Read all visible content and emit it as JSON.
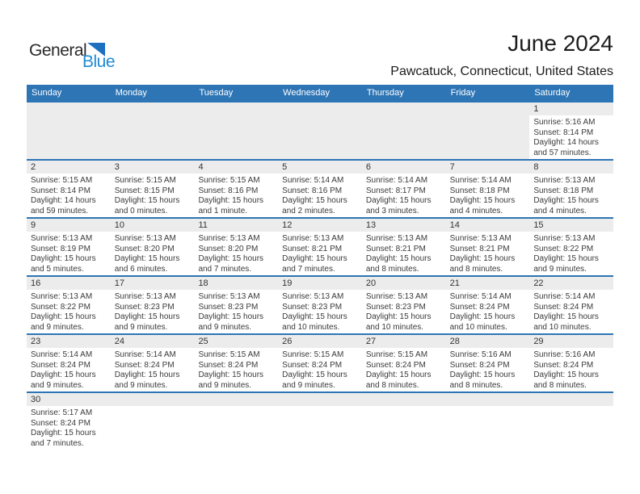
{
  "colors": {
    "header-blue": "#2e75b5",
    "band-gray": "#ececec",
    "logo-blue": "#1e8bd1",
    "flag-blue": "#1c70bf"
  },
  "logo": {
    "part1": "General",
    "part2": "Blue"
  },
  "header": {
    "title": "June 2024",
    "subtitle": "Pawcatuck, Connecticut, United States"
  },
  "calendar": {
    "weekdays": [
      "Sunday",
      "Monday",
      "Tuesday",
      "Wednesday",
      "Thursday",
      "Friday",
      "Saturday"
    ],
    "weeks": [
      [
        {
          "empty": "full"
        },
        {
          "empty": "full"
        },
        {
          "empty": "full"
        },
        {
          "empty": "full"
        },
        {
          "empty": "full"
        },
        {
          "empty": "full"
        },
        {
          "day": "1",
          "lines": [
            "Sunrise: 5:16 AM",
            "Sunset: 8:14 PM",
            "Daylight: 14 hours",
            "and 57 minutes."
          ]
        }
      ],
      [
        {
          "day": "2",
          "lines": [
            "Sunrise: 5:15 AM",
            "Sunset: 8:14 PM",
            "Daylight: 14 hours",
            "and 59 minutes."
          ]
        },
        {
          "day": "3",
          "lines": [
            "Sunrise: 5:15 AM",
            "Sunset: 8:15 PM",
            "Daylight: 15 hours",
            "and 0 minutes."
          ]
        },
        {
          "day": "4",
          "lines": [
            "Sunrise: 5:15 AM",
            "Sunset: 8:16 PM",
            "Daylight: 15 hours",
            "and 1 minute."
          ]
        },
        {
          "day": "5",
          "lines": [
            "Sunrise: 5:14 AM",
            "Sunset: 8:16 PM",
            "Daylight: 15 hours",
            "and 2 minutes."
          ]
        },
        {
          "day": "6",
          "lines": [
            "Sunrise: 5:14 AM",
            "Sunset: 8:17 PM",
            "Daylight: 15 hours",
            "and 3 minutes."
          ]
        },
        {
          "day": "7",
          "lines": [
            "Sunrise: 5:14 AM",
            "Sunset: 8:18 PM",
            "Daylight: 15 hours",
            "and 4 minutes."
          ]
        },
        {
          "day": "8",
          "lines": [
            "Sunrise: 5:13 AM",
            "Sunset: 8:18 PM",
            "Daylight: 15 hours",
            "and 4 minutes."
          ]
        }
      ],
      [
        {
          "day": "9",
          "lines": [
            "Sunrise: 5:13 AM",
            "Sunset: 8:19 PM",
            "Daylight: 15 hours",
            "and 5 minutes."
          ]
        },
        {
          "day": "10",
          "lines": [
            "Sunrise: 5:13 AM",
            "Sunset: 8:20 PM",
            "Daylight: 15 hours",
            "and 6 minutes."
          ]
        },
        {
          "day": "11",
          "lines": [
            "Sunrise: 5:13 AM",
            "Sunset: 8:20 PM",
            "Daylight: 15 hours",
            "and 7 minutes."
          ]
        },
        {
          "day": "12",
          "lines": [
            "Sunrise: 5:13 AM",
            "Sunset: 8:21 PM",
            "Daylight: 15 hours",
            "and 7 minutes."
          ]
        },
        {
          "day": "13",
          "lines": [
            "Sunrise: 5:13 AM",
            "Sunset: 8:21 PM",
            "Daylight: 15 hours",
            "and 8 minutes."
          ]
        },
        {
          "day": "14",
          "lines": [
            "Sunrise: 5:13 AM",
            "Sunset: 8:21 PM",
            "Daylight: 15 hours",
            "and 8 minutes."
          ]
        },
        {
          "day": "15",
          "lines": [
            "Sunrise: 5:13 AM",
            "Sunset: 8:22 PM",
            "Daylight: 15 hours",
            "and 9 minutes."
          ]
        }
      ],
      [
        {
          "day": "16",
          "lines": [
            "Sunrise: 5:13 AM",
            "Sunset: 8:22 PM",
            "Daylight: 15 hours",
            "and 9 minutes."
          ]
        },
        {
          "day": "17",
          "lines": [
            "Sunrise: 5:13 AM",
            "Sunset: 8:23 PM",
            "Daylight: 15 hours",
            "and 9 minutes."
          ]
        },
        {
          "day": "18",
          "lines": [
            "Sunrise: 5:13 AM",
            "Sunset: 8:23 PM",
            "Daylight: 15 hours",
            "and 9 minutes."
          ]
        },
        {
          "day": "19",
          "lines": [
            "Sunrise: 5:13 AM",
            "Sunset: 8:23 PM",
            "Daylight: 15 hours",
            "and 10 minutes."
          ]
        },
        {
          "day": "20",
          "lines": [
            "Sunrise: 5:13 AM",
            "Sunset: 8:23 PM",
            "Daylight: 15 hours",
            "and 10 minutes."
          ]
        },
        {
          "day": "21",
          "lines": [
            "Sunrise: 5:14 AM",
            "Sunset: 8:24 PM",
            "Daylight: 15 hours",
            "and 10 minutes."
          ]
        },
        {
          "day": "22",
          "lines": [
            "Sunrise: 5:14 AM",
            "Sunset: 8:24 PM",
            "Daylight: 15 hours",
            "and 10 minutes."
          ]
        }
      ],
      [
        {
          "day": "23",
          "lines": [
            "Sunrise: 5:14 AM",
            "Sunset: 8:24 PM",
            "Daylight: 15 hours",
            "and 9 minutes."
          ]
        },
        {
          "day": "24",
          "lines": [
            "Sunrise: 5:14 AM",
            "Sunset: 8:24 PM",
            "Daylight: 15 hours",
            "and 9 minutes."
          ]
        },
        {
          "day": "25",
          "lines": [
            "Sunrise: 5:15 AM",
            "Sunset: 8:24 PM",
            "Daylight: 15 hours",
            "and 9 minutes."
          ]
        },
        {
          "day": "26",
          "lines": [
            "Sunrise: 5:15 AM",
            "Sunset: 8:24 PM",
            "Daylight: 15 hours",
            "and 9 minutes."
          ]
        },
        {
          "day": "27",
          "lines": [
            "Sunrise: 5:15 AM",
            "Sunset: 8:24 PM",
            "Daylight: 15 hours",
            "and 8 minutes."
          ]
        },
        {
          "day": "28",
          "lines": [
            "Sunrise: 5:16 AM",
            "Sunset: 8:24 PM",
            "Daylight: 15 hours",
            "and 8 minutes."
          ]
        },
        {
          "day": "29",
          "lines": [
            "Sunrise: 5:16 AM",
            "Sunset: 8:24 PM",
            "Daylight: 15 hours",
            "and 8 minutes."
          ]
        }
      ],
      [
        {
          "day": "30",
          "lines": [
            "Sunrise: 5:17 AM",
            "Sunset: 8:24 PM",
            "Daylight: 15 hours",
            "and 7 minutes."
          ]
        },
        {
          "empty": "band"
        },
        {
          "empty": "band"
        },
        {
          "empty": "band"
        },
        {
          "empty": "band"
        },
        {
          "empty": "band"
        },
        {
          "empty": "band"
        }
      ]
    ]
  }
}
